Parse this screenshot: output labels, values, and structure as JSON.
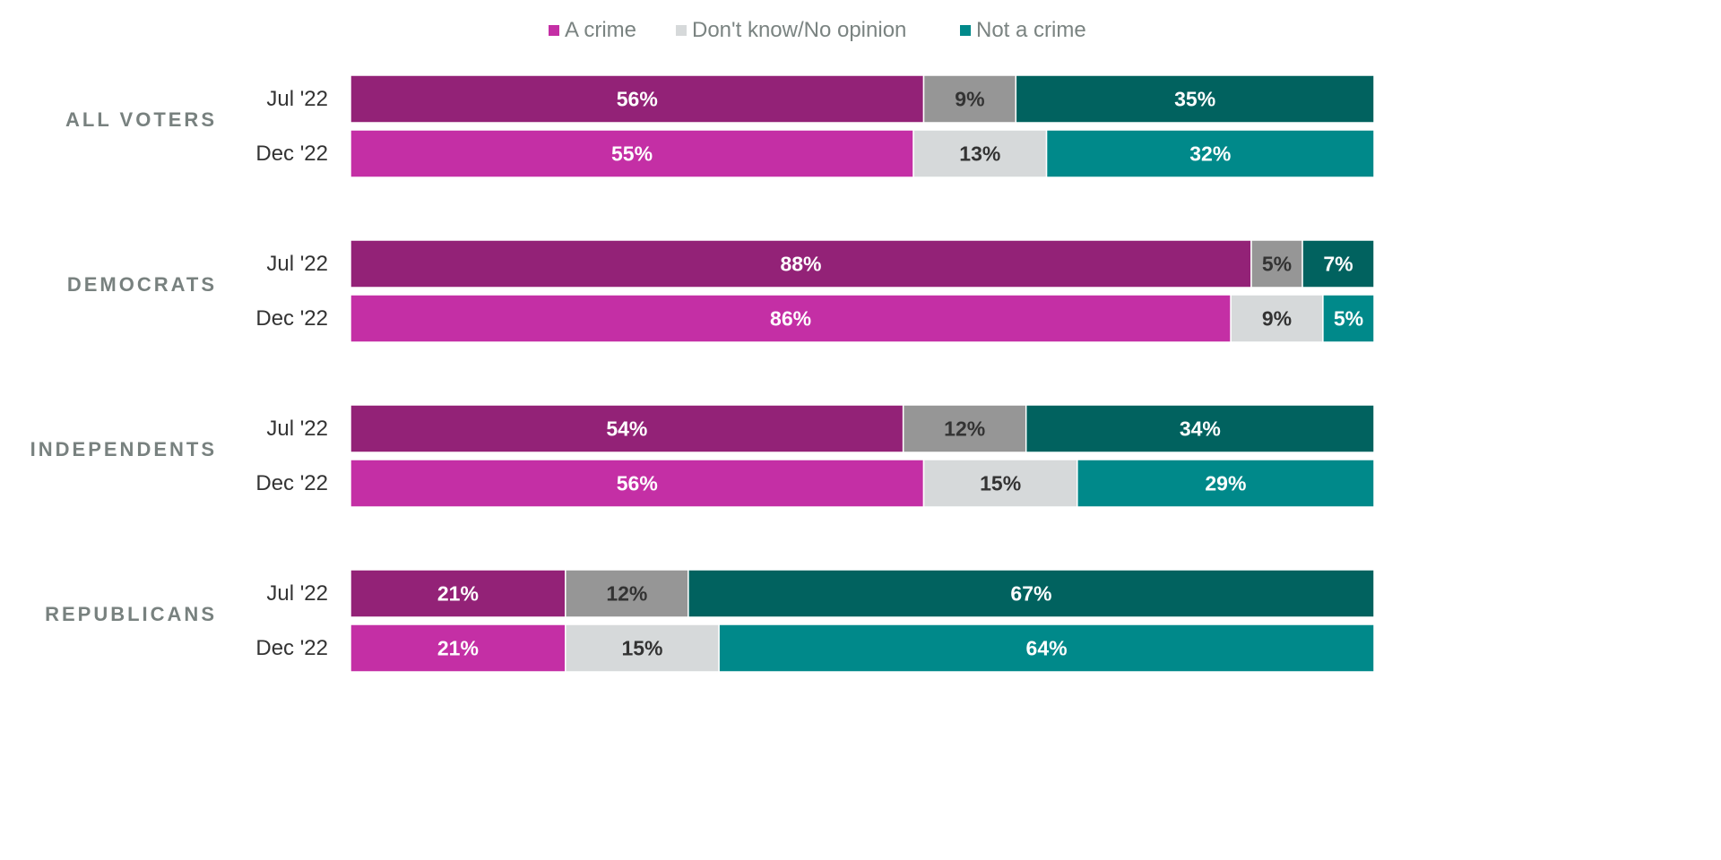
{
  "chart_data": {
    "type": "bar",
    "orientation": "horizontal",
    "stacked": true,
    "percent_scale": [
      0,
      100
    ],
    "grid": false,
    "legend_position": "top-center",
    "legend": [
      {
        "key": "crime",
        "label": "A crime",
        "color": "#c42fa5"
      },
      {
        "key": "dont_know",
        "label": "Don't know/No opinion",
        "color": "#d6d9da"
      },
      {
        "key": "not_crime",
        "label": "Not a crime",
        "color": "#00898a"
      }
    ],
    "colors": {
      "Jul '22": {
        "crime": "#932277",
        "dont_know": "#969696",
        "not_crime": "#01625f"
      },
      "Dec '22": {
        "crime": "#c42fa5",
        "dont_know": "#d6d9da",
        "not_crime": "#00898a"
      }
    },
    "label_colors": {
      "crime": "#ffffff",
      "dont_know": "#333333",
      "not_crime": "#ffffff"
    },
    "groups": [
      {
        "name": "ALL VOTERS",
        "rows": [
          {
            "period": "Jul '22",
            "crime": 56,
            "dont_know": 9,
            "not_crime": 35
          },
          {
            "period": "Dec '22",
            "crime": 55,
            "dont_know": 13,
            "not_crime": 32
          }
        ]
      },
      {
        "name": "DEMOCRATS",
        "rows": [
          {
            "period": "Jul '22",
            "crime": 88,
            "dont_know": 5,
            "not_crime": 7
          },
          {
            "period": "Dec '22",
            "crime": 86,
            "dont_know": 9,
            "not_crime": 5
          }
        ]
      },
      {
        "name": "INDEPENDENTS",
        "rows": [
          {
            "period": "Jul '22",
            "crime": 54,
            "dont_know": 12,
            "not_crime": 34
          },
          {
            "period": "Dec '22",
            "crime": 56,
            "dont_know": 15,
            "not_crime": 29
          }
        ]
      },
      {
        "name": "REPUBLICANS",
        "rows": [
          {
            "period": "Jul '22",
            "crime": 21,
            "dont_know": 12,
            "not_crime": 67
          },
          {
            "period": "Dec '22",
            "crime": 21,
            "dont_know": 15,
            "not_crime": 64
          }
        ]
      }
    ]
  }
}
